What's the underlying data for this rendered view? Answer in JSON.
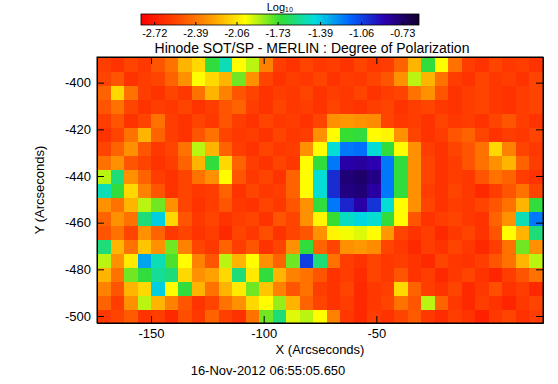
{
  "chart_data": {
    "type": "heatmap",
    "title": "Hinode SOT/SP - MERLIN : Degree of Polarization",
    "x_label": "X (Arcseconds)",
    "y_label": "Y (Arcseconds)",
    "annotation": "16-Nov-2012 06:55:05.650",
    "colorbar_title": "Log₁₀",
    "xlim": [
      -174,
      24
    ],
    "ylim": [
      -503,
      -389
    ],
    "xticks": [
      -150,
      -100,
      -50
    ],
    "yticks": [
      -500,
      -480,
      -460,
      -440,
      -420,
      -400
    ],
    "zlim": [
      -2.83,
      -0.6
    ],
    "zticks": [
      -2.72,
      -2.39,
      -2.06,
      -1.73,
      -1.39,
      -1.06,
      -0.73
    ],
    "x": [
      -171,
      -165,
      -159,
      -153,
      -147,
      -141,
      -135,
      -129,
      -123,
      -117,
      -111,
      -105,
      -99,
      -93,
      -87,
      -81,
      -75,
      -69,
      -63,
      -57,
      -51,
      -45,
      -39,
      -33,
      -27,
      -21,
      -15,
      -9,
      -3,
      3,
      9,
      15,
      21
    ],
    "y": [
      -500,
      -494,
      -488,
      -482,
      -476,
      -470,
      -464,
      -458,
      -452,
      -446,
      -440,
      -434,
      -428,
      -422,
      -416,
      -410,
      -404,
      -398,
      -392
    ],
    "z": [
      [
        -2.6,
        -2.55,
        -2.48,
        -2.62,
        -2.58,
        -2.66,
        -2.52,
        -2.6,
        -2.45,
        -2.57,
        -2.63,
        -2.4,
        -1.8,
        -1.6,
        -1.95,
        -1.9,
        -2.0,
        -2.35,
        -2.6,
        -2.66,
        -2.58,
        -2.62,
        -2.55,
        -2.48,
        -2.6,
        -2.65,
        -2.58,
        -2.62,
        -2.7,
        -2.6,
        -2.55,
        -2.63,
        -2.58
      ],
      [
        -2.45,
        -2.58,
        -2.3,
        -1.9,
        -2.2,
        -2.35,
        -2.5,
        -2.62,
        -2.55,
        -2.4,
        -2.3,
        -2.1,
        -2.0,
        -1.85,
        -2.2,
        -2.45,
        -2.55,
        -2.62,
        -2.58,
        -2.66,
        -2.6,
        -2.55,
        -2.4,
        -2.5,
        -1.9,
        -2.45,
        -2.6,
        -2.66,
        -2.58,
        -2.62,
        -2.68,
        -2.6,
        -2.55
      ],
      [
        -2.35,
        -2.5,
        -2.2,
        -2.1,
        -1.4,
        -2.0,
        -1.7,
        -2.2,
        -2.4,
        -2.2,
        -2.05,
        -1.8,
        -2.15,
        -2.35,
        -2.5,
        -2.4,
        -2.58,
        -2.62,
        -2.55,
        -2.66,
        -2.6,
        -2.57,
        -2.1,
        -2.45,
        -2.58,
        -2.62,
        -2.55,
        -2.66,
        -2.6,
        -2.52,
        -2.62,
        -2.58,
        -2.66
      ],
      [
        -2.2,
        -2.4,
        -1.8,
        -1.7,
        -1.55,
        -1.6,
        -2.1,
        -2.3,
        -2.25,
        -2.1,
        -1.6,
        -2.05,
        -1.7,
        -2.2,
        -2.35,
        -2.4,
        -2.5,
        -2.62,
        -2.58,
        -2.65,
        -2.55,
        -2.6,
        -2.5,
        -2.62,
        -2.58,
        -2.66,
        -2.6,
        -2.55,
        -2.62,
        -2.68,
        -2.58,
        -2.5,
        -2.4
      ],
      [
        -1.9,
        -2.3,
        -2.05,
        -1.3,
        -1.5,
        -1.75,
        -2.0,
        -2.35,
        -2.5,
        -1.9,
        -2.2,
        -2.0,
        -2.3,
        -2.45,
        -1.8,
        -1.05,
        -1.6,
        -2.4,
        -2.58,
        -2.62,
        -2.55,
        -2.6,
        -2.58,
        -2.62,
        -2.66,
        -2.55,
        -2.6,
        -2.62,
        -2.58,
        -2.5,
        -2.4,
        -2.2,
        -1.9
      ],
      [
        -1.6,
        -2.2,
        -2.4,
        -2.15,
        -2.3,
        -1.8,
        -2.35,
        -2.55,
        -2.6,
        -2.45,
        -2.58,
        -2.5,
        -2.62,
        -2.55,
        -2.3,
        -1.7,
        -2.45,
        -2.55,
        -2.3,
        -2.28,
        -2.32,
        -2.55,
        -2.6,
        -2.66,
        -2.58,
        -2.62,
        -2.55,
        -2.6,
        -2.66,
        -2.58,
        -2.4,
        -1.8,
        -2.3
      ],
      [
        -2.5,
        -2.4,
        -2.55,
        -2.3,
        -2.45,
        -2.6,
        -2.55,
        -2.62,
        -2.58,
        -2.66,
        -2.55,
        -2.6,
        -2.52,
        -2.62,
        -2.55,
        -2.5,
        -2.3,
        -2.02,
        -1.98,
        -1.95,
        -2.0,
        -2.28,
        -2.55,
        -2.62,
        -2.58,
        -2.66,
        -2.6,
        -2.55,
        -2.62,
        -2.5,
        -2.0,
        -2.2,
        -1.6
      ],
      [
        -2.45,
        -2.3,
        -2.4,
        -1.6,
        -1.4,
        -2.1,
        -2.5,
        -2.6,
        -2.55,
        -2.62,
        -2.58,
        -2.55,
        -2.62,
        -2.5,
        -2.55,
        -2.3,
        -2.02,
        -1.72,
        -1.48,
        -1.42,
        -1.46,
        -1.7,
        -2.0,
        -2.5,
        -2.62,
        -2.58,
        -2.55,
        -2.6,
        -2.62,
        -2.45,
        -2.3,
        -1.5,
        -1.2
      ],
      [
        -2.3,
        -2.4,
        -2.2,
        -1.9,
        -1.8,
        -2.3,
        -2.55,
        -2.62,
        -2.58,
        -2.5,
        -2.6,
        -2.62,
        -2.55,
        -2.6,
        -2.5,
        -2.3,
        -1.7,
        -1.2,
        -0.98,
        -0.86,
        -1.02,
        -1.45,
        -2.0,
        -2.3,
        -2.55,
        -2.62,
        -2.58,
        -2.6,
        -2.55,
        -2.5,
        -2.4,
        -2.2,
        -1.7
      ],
      [
        -1.5,
        -1.7,
        -2.1,
        -2.35,
        -2.5,
        -2.62,
        -2.55,
        -2.6,
        -2.58,
        -2.45,
        -2.62,
        -2.55,
        -2.6,
        -2.58,
        -2.45,
        -2.0,
        -1.45,
        -1.0,
        -0.78,
        -0.76,
        -0.85,
        -1.2,
        -1.7,
        -2.3,
        -2.58,
        -2.62,
        -2.55,
        -2.6,
        -2.66,
        -2.58,
        -2.5,
        -2.4,
        -2.55
      ],
      [
        -1.9,
        -1.6,
        -2.3,
        -2.45,
        -2.58,
        -2.62,
        -2.55,
        -2.4,
        -2.3,
        -2.0,
        -2.5,
        -2.6,
        -2.55,
        -2.62,
        -2.45,
        -2.0,
        -1.45,
        -1.0,
        -0.76,
        -0.74,
        -0.79,
        -1.2,
        -1.7,
        -2.3,
        -2.55,
        -2.62,
        -2.58,
        -2.6,
        -2.5,
        -2.4,
        -2.45,
        -2.58,
        -2.62
      ],
      [
        -2.4,
        -2.3,
        -2.5,
        -2.55,
        -2.62,
        -2.58,
        -2.45,
        -2.2,
        -1.7,
        -2.1,
        -2.45,
        -2.58,
        -2.62,
        -2.55,
        -2.6,
        -2.0,
        -1.7,
        -1.2,
        -0.86,
        -0.84,
        -0.88,
        -1.2,
        -1.7,
        -2.3,
        -2.55,
        -2.62,
        -2.58,
        -2.5,
        -2.4,
        -2.3,
        -2.2,
        -2.45,
        -2.58
      ],
      [
        -2.55,
        -2.45,
        -2.3,
        -2.5,
        -2.6,
        -2.55,
        -2.4,
        -1.9,
        -2.2,
        -2.45,
        -2.58,
        -2.62,
        -2.55,
        -2.6,
        -2.58,
        -2.3,
        -2.0,
        -1.45,
        -1.2,
        -1.18,
        -1.45,
        -1.7,
        -2.0,
        -2.3,
        -2.58,
        -2.62,
        -2.55,
        -2.5,
        -2.4,
        -2.1,
        -2.35,
        -2.55,
        -2.6
      ],
      [
        -2.62,
        -2.55,
        -2.4,
        -2.2,
        -2.45,
        -2.58,
        -2.62,
        -2.5,
        -2.4,
        -2.55,
        -2.6,
        -2.58,
        -2.62,
        -2.55,
        -2.6,
        -2.58,
        -2.3,
        -2.0,
        -1.72,
        -1.7,
        -2.0,
        -2.02,
        -2.3,
        -2.55,
        -2.62,
        -2.58,
        -2.5,
        -2.45,
        -2.55,
        -2.62,
        -2.58,
        -2.6,
        -2.55
      ],
      [
        -2.58,
        -2.5,
        -2.62,
        -2.55,
        -2.4,
        -2.58,
        -2.62,
        -2.55,
        -2.6,
        -2.5,
        -2.58,
        -2.62,
        -2.55,
        -2.6,
        -2.58,
        -2.62,
        -2.55,
        -2.3,
        -2.28,
        -2.3,
        -2.32,
        -2.55,
        -2.6,
        -2.58,
        -2.62,
        -2.55,
        -2.6,
        -2.58,
        -2.62,
        -2.55,
        -2.5,
        -2.58,
        -2.62
      ],
      [
        -2.5,
        -2.4,
        -2.55,
        -2.62,
        -2.58,
        -2.6,
        -2.55,
        -2.62,
        -2.58,
        -2.5,
        -2.45,
        -2.58,
        -2.62,
        -2.55,
        -2.6,
        -2.58,
        -2.62,
        -2.55,
        -2.6,
        -2.62,
        -2.58,
        -2.55,
        -2.62,
        -2.58,
        -2.55,
        -2.6,
        -2.62,
        -2.58,
        -2.55,
        -2.6,
        -2.62,
        -2.58,
        -2.55
      ],
      [
        -2.45,
        -2.1,
        -2.4,
        -2.58,
        -2.62,
        -2.55,
        -2.6,
        -2.4,
        -2.2,
        -2.35,
        -2.5,
        -2.55,
        -2.62,
        -2.58,
        -2.6,
        -2.55,
        -2.62,
        -2.58,
        -2.6,
        -2.55,
        -2.62,
        -2.58,
        -2.55,
        -2.4,
        -2.3,
        -2.5,
        -2.62,
        -2.58,
        -2.55,
        -2.6,
        -2.62,
        -2.58,
        -2.55
      ],
      [
        -2.55,
        -2.5,
        -2.62,
        -2.58,
        -2.55,
        -2.45,
        -2.3,
        -2.0,
        -2.1,
        -2.2,
        -1.8,
        -2.3,
        -2.55,
        -2.62,
        -2.58,
        -2.6,
        -2.55,
        -2.62,
        -2.58,
        -2.6,
        -2.55,
        -2.5,
        -2.3,
        -1.9,
        -2.2,
        -2.4,
        -2.58,
        -2.62,
        -2.55,
        -2.6,
        -2.58,
        -2.62,
        -2.55
      ],
      [
        -2.58,
        -2.62,
        -2.55,
        -2.6,
        -2.5,
        -2.4,
        -2.2,
        -2.1,
        -1.7,
        -1.5,
        -2.0,
        -1.9,
        -2.35,
        -2.58,
        -2.62,
        -2.55,
        -2.6,
        -2.58,
        -2.62,
        -2.55,
        -2.6,
        -2.58,
        -2.45,
        -2.2,
        -1.7,
        -2.0,
        -2.4,
        -2.58,
        -2.62,
        -2.55,
        -2.6,
        -2.58,
        -2.62
      ]
    ]
  }
}
